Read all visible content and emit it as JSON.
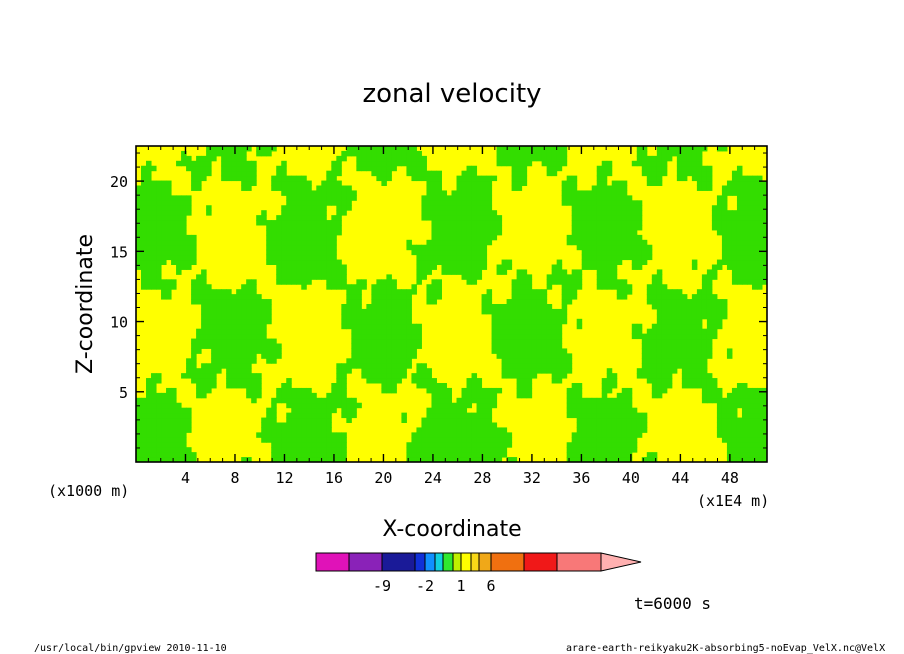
{
  "chart_data": {
    "type": "heatmap",
    "title": "zonal velocity",
    "xlabel": "X-coordinate",
    "ylabel": "Z-coordinate",
    "x_unit": "(x1E4 m)",
    "y_unit": "(x1000 m)",
    "x_ticks": [
      "4",
      "8",
      "12",
      "16",
      "20",
      "24",
      "28",
      "32",
      "36",
      "40",
      "44",
      "48"
    ],
    "y_ticks": [
      "5",
      "10",
      "15",
      "20"
    ],
    "xlim": [
      0,
      51
    ],
    "ylim": [
      0,
      22.5
    ],
    "field_colors": {
      "yellow": "#ffff00",
      "green": "#33dd00"
    },
    "color_scale": {
      "colors": [
        "#e012b8",
        "#8a22b8",
        "#1a1a98",
        "#1030d8",
        "#1090ff",
        "#10d0e0",
        "#30e830",
        "#c0f000",
        "#ffff00",
        "#f8d818",
        "#f0a818",
        "#f07010",
        "#f01818",
        "#f87878",
        "#ffb0b0"
      ],
      "labels": [
        "-9",
        "-2",
        "1",
        "6"
      ]
    },
    "time_label": "t=6000 s"
  },
  "footer": {
    "left": "/usr/local/bin/gpview  2010-11-10",
    "right": "arare-earth-reikyaku2K-absorbing5-noEvap_VelX.nc@VelX"
  }
}
